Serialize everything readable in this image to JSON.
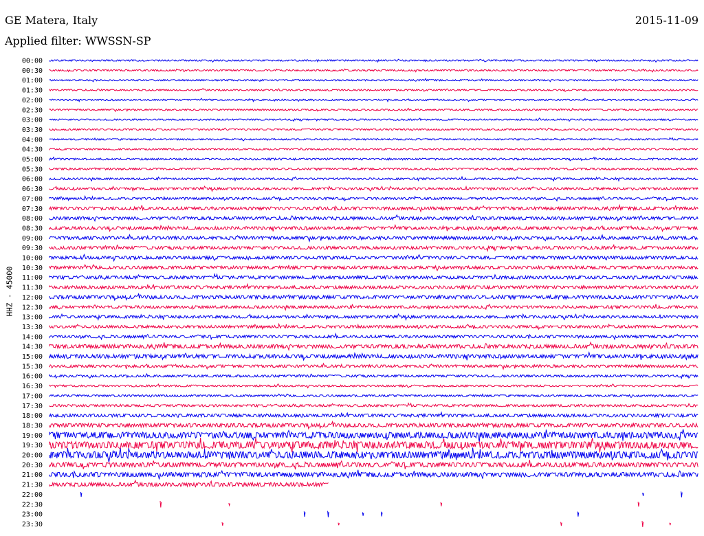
{
  "header": {
    "station": "GE Matera, Italy",
    "date": "2015-11-09",
    "filter": "Applied filter: WWSSN-SP",
    "channel": "HHZ - 45000"
  },
  "chart_data": {
    "type": "line",
    "title": "GE Matera, Italy",
    "subtitle": "Applied filter: WWSSN-SP",
    "ylabel": "HHZ - 45000",
    "date": "2015-11-09",
    "line_colors": [
      "#0000ee",
      "#ee0044"
    ],
    "rows": [
      {
        "time": "00:00",
        "amp": 2,
        "color": "#0000ee"
      },
      {
        "time": "00:30",
        "amp": 2,
        "color": "#ee0044"
      },
      {
        "time": "01:00",
        "amp": 2,
        "color": "#0000ee"
      },
      {
        "time": "01:30",
        "amp": 2,
        "color": "#ee0044"
      },
      {
        "time": "02:00",
        "amp": 2,
        "color": "#0000ee"
      },
      {
        "time": "02:30",
        "amp": 2,
        "color": "#ee0044"
      },
      {
        "time": "03:00",
        "amp": 2,
        "color": "#0000ee"
      },
      {
        "time": "03:30",
        "amp": 2,
        "color": "#ee0044"
      },
      {
        "time": "04:00",
        "amp": 2,
        "color": "#0000ee"
      },
      {
        "time": "04:30",
        "amp": 2,
        "color": "#ee0044"
      },
      {
        "time": "05:00",
        "amp": 2.5,
        "color": "#0000ee"
      },
      {
        "time": "05:30",
        "amp": 2.5,
        "color": "#ee0044"
      },
      {
        "time": "06:00",
        "amp": 2.5,
        "color": "#0000ee"
      },
      {
        "time": "06:30",
        "amp": 3,
        "color": "#ee0044"
      },
      {
        "time": "07:00",
        "amp": 3,
        "color": "#0000ee"
      },
      {
        "time": "07:30",
        "amp": 4,
        "color": "#ee0044"
      },
      {
        "time": "08:00",
        "amp": 4,
        "color": "#0000ee"
      },
      {
        "time": "08:30",
        "amp": 4,
        "color": "#ee0044"
      },
      {
        "time": "09:00",
        "amp": 4,
        "color": "#0000ee"
      },
      {
        "time": "09:30",
        "amp": 4,
        "color": "#ee0044"
      },
      {
        "time": "10:00",
        "amp": 4,
        "color": "#0000ee"
      },
      {
        "time": "10:30",
        "amp": 4,
        "color": "#ee0044"
      },
      {
        "time": "11:00",
        "amp": 4,
        "color": "#0000ee"
      },
      {
        "time": "11:30",
        "amp": 4,
        "color": "#ee0044"
      },
      {
        "time": "12:00",
        "amp": 4.5,
        "color": "#0000ee"
      },
      {
        "time": "12:30",
        "amp": 3.5,
        "color": "#ee0044"
      },
      {
        "time": "13:00",
        "amp": 3.5,
        "color": "#0000ee"
      },
      {
        "time": "13:30",
        "amp": 3.5,
        "color": "#ee0044"
      },
      {
        "time": "14:00",
        "amp": 3.5,
        "color": "#0000ee"
      },
      {
        "time": "14:30",
        "amp": 5,
        "color": "#ee0044"
      },
      {
        "time": "15:00",
        "amp": 5,
        "color": "#0000ee"
      },
      {
        "time": "15:30",
        "amp": 3.5,
        "color": "#ee0044"
      },
      {
        "time": "16:00",
        "amp": 3,
        "color": "#0000ee"
      },
      {
        "time": "16:30",
        "amp": 2.5,
        "color": "#ee0044"
      },
      {
        "time": "17:00",
        "amp": 2.5,
        "color": "#0000ee"
      },
      {
        "time": "17:30",
        "amp": 3,
        "color": "#ee0044"
      },
      {
        "time": "18:00",
        "amp": 4,
        "color": "#0000ee"
      },
      {
        "time": "18:30",
        "amp": 5,
        "color": "#ee0044"
      },
      {
        "time": "19:00",
        "amp": 8,
        "color": "#0000ee"
      },
      {
        "time": "19:30",
        "amp": 9,
        "color": "#ee0044"
      },
      {
        "time": "20:00",
        "amp": 9,
        "color": "#0000ee"
      },
      {
        "time": "20:30",
        "amp": 6,
        "color": "#ee0044"
      },
      {
        "time": "21:00",
        "amp": 6,
        "color": "#0000ee"
      },
      {
        "time": "21:30",
        "amp": 5,
        "color": "#ee0044"
      },
      {
        "time": "22:00",
        "amp": 0,
        "color": "#0000ee"
      },
      {
        "time": "22:30",
        "amp": 0,
        "color": "#ee0044"
      },
      {
        "time": "23:00",
        "amp": 0,
        "color": "#0000ee"
      },
      {
        "time": "23:30",
        "amp": 0,
        "color": "#ee0044"
      }
    ],
    "data_end_fraction": 0.43,
    "grid": false,
    "legend": "none"
  }
}
